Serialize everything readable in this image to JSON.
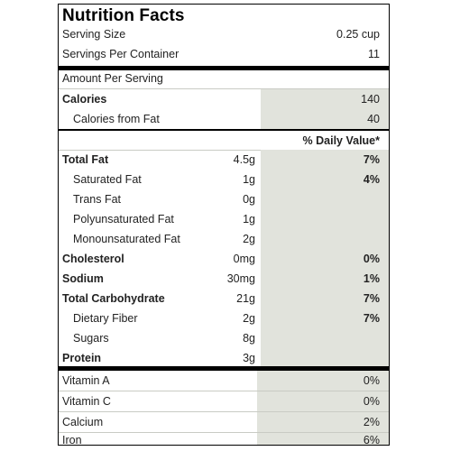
{
  "title": "Nutrition Facts",
  "serving_size": {
    "label": "Serving Size",
    "value": "0.25 cup"
  },
  "servings_per_container": {
    "label": "Servings Per Container",
    "value": "11"
  },
  "amount_per_serving": "Amount Per Serving",
  "calories": {
    "label": "Calories",
    "value": "140"
  },
  "calories_from_fat": {
    "label": "Calories from Fat",
    "value": "40"
  },
  "daily_value_header": "% Daily Value*",
  "nutrients": [
    {
      "label": "Total Fat",
      "amount": "4.5g",
      "dv": "7%"
    },
    {
      "label": "Saturated Fat",
      "amount": "1g",
      "dv": "4%"
    },
    {
      "label": "Trans Fat",
      "amount": "0g",
      "dv": ""
    },
    {
      "label": "Polyunsaturated Fat",
      "amount": "1g",
      "dv": ""
    },
    {
      "label": "Monounsaturated Fat",
      "amount": "2g",
      "dv": ""
    },
    {
      "label": "Cholesterol",
      "amount": "0mg",
      "dv": "0%"
    },
    {
      "label": "Sodium",
      "amount": "30mg",
      "dv": "1%"
    },
    {
      "label": "Total Carbohydrate",
      "amount": "21g",
      "dv": "7%"
    },
    {
      "label": "Dietary Fiber",
      "amount": "2g",
      "dv": "7%"
    },
    {
      "label": "Sugars",
      "amount": "8g",
      "dv": ""
    },
    {
      "label": "Protein",
      "amount": "3g",
      "dv": ""
    }
  ],
  "vitamins": [
    {
      "label": "Vitamin A",
      "dv": "0%"
    },
    {
      "label": "Vitamin C",
      "dv": "0%"
    },
    {
      "label": "Calcium",
      "dv": "2%"
    },
    {
      "label": "Iron",
      "dv": "6%"
    }
  ],
  "colors": {
    "shade": "#e1e3dc",
    "rule": "#000000"
  }
}
